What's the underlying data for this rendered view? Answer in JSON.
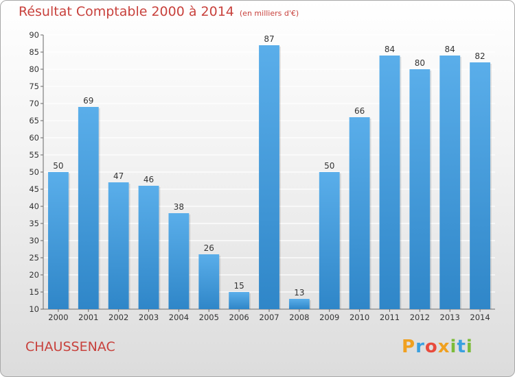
{
  "header": {
    "title": "Résultat Comptable 2000 à 2014",
    "subtitle": "(en milliers d'€)"
  },
  "footer": {
    "commune": "CHAUSSENAC",
    "brand_letters": [
      "P",
      "r",
      "o",
      "x",
      "i",
      "t",
      "i"
    ]
  },
  "colors": {
    "bar_light": "#5aaeea",
    "bar_dark": "#2f86c8",
    "title": "#c8413c",
    "grid": "#ffffff"
  },
  "chart_data": {
    "type": "bar",
    "title": "Résultat Comptable 2000 à 2014",
    "subtitle": "(en milliers d'€)",
    "xlabel": "",
    "ylabel": "",
    "categories": [
      "2000",
      "2001",
      "2002",
      "2003",
      "2004",
      "2005",
      "2006",
      "2007",
      "2008",
      "2009",
      "2010",
      "2011",
      "2012",
      "2013",
      "2014"
    ],
    "values": [
      50,
      69,
      47,
      46,
      38,
      26,
      15,
      87,
      13,
      50,
      66,
      84,
      80,
      84,
      82
    ],
    "ylim": [
      10,
      90
    ],
    "yticks": [
      10,
      15,
      20,
      25,
      30,
      35,
      40,
      45,
      50,
      55,
      60,
      65,
      70,
      75,
      80,
      85,
      90
    ],
    "grid": true,
    "data_labels": true
  }
}
